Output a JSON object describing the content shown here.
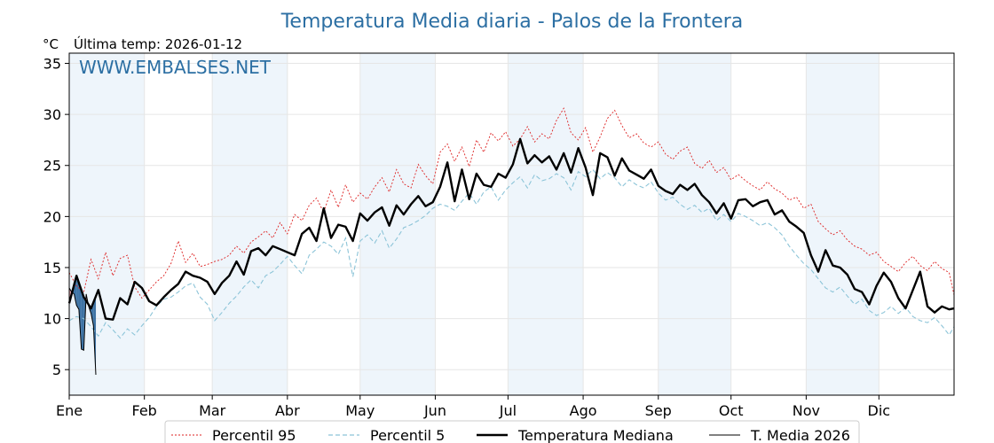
{
  "chart_data": {
    "type": "line",
    "title": "Temperatura Media diaria - Palos de la Frontera",
    "unit_label": "°C",
    "last_temp": "Última temp: 2026-01-12",
    "watermark": "WWW.EMBALSES.NET",
    "xlabel": "",
    "ylabel": "",
    "x_ticks": [
      "Ene",
      "Feb",
      "Mar",
      "Abr",
      "May",
      "Jun",
      "Jul",
      "Ago",
      "Sep",
      "Oct",
      "Nov",
      "Dic"
    ],
    "month_start_days": [
      1,
      32,
      60,
      91,
      121,
      152,
      182,
      213,
      244,
      274,
      305,
      335
    ],
    "xlim": [
      1,
      366
    ],
    "ylim": [
      2.5,
      36
    ],
    "y_ticks": [
      5,
      10,
      15,
      20,
      25,
      30,
      35
    ],
    "grid": true,
    "legend_position": "bottom",
    "colors": {
      "title": "#2c6fa3",
      "p95": "#dd2222",
      "p5": "#8cc4d8",
      "median": "#000000",
      "current": "#000000",
      "band": "#eef5fb",
      "fill_above": "#f0a0a8",
      "fill_below": "#1f5c94"
    },
    "series": [
      {
        "name": "Percentil 95",
        "style": "dotted-red",
        "x": [
          1,
          4,
          7,
          10,
          13,
          16,
          19,
          22,
          25,
          28,
          31,
          34,
          37,
          40,
          43,
          46,
          49,
          52,
          55,
          58,
          61,
          64,
          67,
          70,
          73,
          76,
          79,
          82,
          85,
          88,
          91,
          94,
          97,
          100,
          103,
          106,
          109,
          112,
          115,
          118,
          121,
          124,
          127,
          130,
          133,
          136,
          139,
          142,
          145,
          148,
          151,
          154,
          157,
          160,
          163,
          166,
          169,
          172,
          175,
          178,
          181,
          184,
          187,
          190,
          193,
          196,
          199,
          202,
          205,
          208,
          211,
          214,
          217,
          220,
          223,
          226,
          229,
          232,
          235,
          238,
          241,
          244,
          247,
          250,
          253,
          256,
          259,
          262,
          265,
          268,
          271,
          274,
          277,
          280,
          283,
          286,
          289,
          292,
          295,
          298,
          301,
          304,
          307,
          310,
          313,
          316,
          319,
          322,
          325,
          328,
          331,
          334,
          337,
          340,
          343,
          346,
          349,
          352,
          355,
          358,
          361,
          364,
          366
        ],
        "y": [
          14.5,
          13.2,
          12.6,
          15.8,
          13.9,
          16.5,
          14.2,
          15.9,
          16.2,
          13.1,
          12.0,
          12.8,
          13.6,
          14.2,
          15.4,
          17.6,
          15.5,
          16.4,
          15.1,
          15.3,
          15.6,
          15.8,
          16.2,
          17.1,
          16.4,
          17.5,
          18.0,
          18.6,
          17.9,
          19.4,
          18.3,
          20.2,
          19.6,
          21.1,
          21.8,
          20.4,
          22.6,
          20.9,
          23.1,
          21.4,
          22.3,
          21.7,
          22.9,
          23.8,
          22.4,
          24.6,
          23.2,
          22.8,
          25.1,
          24.0,
          23.2,
          26.3,
          27.1,
          25.4,
          26.8,
          24.9,
          27.5,
          26.3,
          28.2,
          27.4,
          28.3,
          26.9,
          27.6,
          28.8,
          27.3,
          28.1,
          27.6,
          29.4,
          30.6,
          28.2,
          27.5,
          28.7,
          26.3,
          27.8,
          29.6,
          30.4,
          28.9,
          27.7,
          28.1,
          27.2,
          26.8,
          27.3,
          26.1,
          25.6,
          26.4,
          26.8,
          25.2,
          24.7,
          25.5,
          24.3,
          24.8,
          23.6,
          24.1,
          23.5,
          23.0,
          22.6,
          23.4,
          22.7,
          22.3,
          21.6,
          21.9,
          20.8,
          21.2,
          19.5,
          18.8,
          18.2,
          18.6,
          17.7,
          17.1,
          16.8,
          16.2,
          16.5,
          15.6,
          15.1,
          14.6,
          15.5,
          16.1,
          15.2,
          14.7,
          15.6,
          14.9,
          14.5,
          12.3
        ]
      },
      {
        "name": "Percentil 5",
        "style": "dashed-blue",
        "x": [
          1,
          4,
          7,
          10,
          13,
          16,
          19,
          22,
          25,
          28,
          31,
          34,
          37,
          40,
          43,
          46,
          49,
          52,
          55,
          58,
          61,
          64,
          67,
          70,
          73,
          76,
          79,
          82,
          85,
          88,
          91,
          94,
          97,
          100,
          103,
          106,
          109,
          112,
          115,
          118,
          121,
          124,
          127,
          130,
          133,
          136,
          139,
          142,
          145,
          148,
          151,
          154,
          157,
          160,
          163,
          166,
          169,
          172,
          175,
          178,
          181,
          184,
          187,
          190,
          193,
          196,
          199,
          202,
          205,
          208,
          211,
          214,
          217,
          220,
          223,
          226,
          229,
          232,
          235,
          238,
          241,
          244,
          247,
          250,
          253,
          256,
          259,
          262,
          265,
          268,
          271,
          274,
          277,
          280,
          283,
          286,
          289,
          292,
          295,
          298,
          301,
          304,
          307,
          310,
          313,
          316,
          319,
          322,
          325,
          328,
          331,
          334,
          337,
          340,
          343,
          346,
          349,
          352,
          355,
          358,
          361,
          364,
          366
        ],
        "y": [
          9.8,
          10.2,
          10.0,
          9.2,
          8.3,
          9.6,
          8.9,
          8.1,
          9.0,
          8.4,
          9.3,
          10.1,
          11.2,
          11.9,
          12.1,
          12.6,
          13.2,
          13.5,
          12.1,
          11.4,
          9.8,
          10.6,
          11.5,
          12.2,
          13.1,
          13.8,
          13.0,
          14.2,
          14.6,
          15.3,
          16.1,
          15.2,
          14.4,
          16.2,
          16.8,
          17.5,
          17.1,
          16.3,
          17.9,
          14.1,
          17.6,
          18.2,
          17.4,
          18.6,
          16.9,
          17.8,
          18.9,
          19.2,
          19.6,
          20.1,
          20.8,
          21.2,
          21.0,
          20.6,
          21.5,
          22.3,
          21.2,
          22.4,
          22.9,
          21.6,
          22.6,
          23.3,
          23.9,
          22.8,
          24.1,
          23.5,
          23.7,
          24.2,
          23.8,
          22.6,
          24.4,
          23.9,
          24.6,
          23.7,
          24.3,
          23.8,
          22.9,
          23.6,
          23.1,
          22.8,
          23.4,
          22.3,
          21.6,
          21.9,
          21.2,
          20.7,
          21.1,
          20.4,
          20.8,
          19.6,
          20.2,
          19.5,
          20.3,
          20.0,
          19.6,
          19.1,
          19.4,
          18.9,
          18.2,
          17.1,
          16.2,
          15.4,
          14.8,
          13.9,
          13.0,
          12.6,
          13.1,
          12.2,
          11.4,
          11.9,
          10.8,
          10.3,
          10.6,
          11.2,
          10.5,
          11.1,
          10.2,
          9.8,
          9.6,
          10.1,
          9.3,
          8.4,
          9.2
        ]
      },
      {
        "name": "Temperatura Mediana",
        "style": "solid-thick-black",
        "x": [
          1,
          4,
          7,
          10,
          13,
          16,
          19,
          22,
          25,
          28,
          31,
          34,
          37,
          40,
          43,
          46,
          49,
          52,
          55,
          58,
          61,
          64,
          67,
          70,
          73,
          76,
          79,
          82,
          85,
          88,
          91,
          94,
          97,
          100,
          103,
          106,
          109,
          112,
          115,
          118,
          121,
          124,
          127,
          130,
          133,
          136,
          139,
          142,
          145,
          148,
          151,
          154,
          157,
          160,
          163,
          166,
          169,
          172,
          175,
          178,
          181,
          184,
          187,
          190,
          193,
          196,
          199,
          202,
          205,
          208,
          211,
          214,
          217,
          220,
          223,
          226,
          229,
          232,
          235,
          238,
          241,
          244,
          247,
          250,
          253,
          256,
          259,
          262,
          265,
          268,
          271,
          274,
          277,
          280,
          283,
          286,
          289,
          292,
          295,
          298,
          301,
          304,
          307,
          310,
          313,
          316,
          319,
          322,
          325,
          328,
          331,
          334,
          337,
          340,
          343,
          346,
          349,
          352,
          355,
          358,
          361,
          364,
          366
        ],
        "y": [
          11.5,
          14.2,
          12.1,
          11.0,
          12.8,
          10.0,
          9.9,
          12.0,
          11.4,
          13.6,
          13.0,
          11.7,
          11.3,
          12.1,
          12.8,
          13.4,
          14.6,
          14.2,
          14.0,
          13.6,
          12.4,
          13.5,
          14.2,
          15.6,
          14.3,
          16.6,
          16.9,
          16.2,
          17.1,
          16.8,
          16.5,
          16.2,
          18.3,
          18.9,
          17.6,
          20.8,
          17.9,
          19.2,
          19.0,
          17.6,
          20.3,
          19.6,
          20.4,
          20.9,
          19.1,
          21.1,
          20.2,
          21.2,
          22.0,
          21.0,
          21.4,
          22.9,
          25.3,
          21.5,
          24.6,
          21.7,
          24.2,
          23.1,
          22.9,
          24.2,
          23.8,
          25.1,
          27.6,
          25.2,
          26.0,
          25.3,
          25.9,
          24.6,
          26.2,
          24.3,
          26.7,
          24.8,
          22.1,
          26.2,
          25.8,
          24.0,
          25.7,
          24.5,
          24.1,
          23.7,
          24.6,
          23.0,
          22.5,
          22.2,
          23.1,
          22.6,
          23.2,
          22.1,
          21.4,
          20.3,
          21.3,
          19.8,
          21.6,
          21.7,
          21.0,
          21.4,
          21.6,
          20.2,
          20.6,
          19.5,
          19.0,
          18.4,
          16.2,
          14.6,
          16.7,
          15.2,
          15.0,
          14.3,
          12.9,
          12.6,
          11.4,
          13.2,
          14.5,
          13.6,
          12.0,
          11.0,
          12.8,
          14.6,
          11.2,
          10.6,
          11.2,
          10.9,
          11.0
        ]
      },
      {
        "name": "T. Media 2026",
        "style": "solid-thin-black",
        "x": [
          1,
          2,
          3,
          4,
          5,
          6,
          7,
          8,
          9,
          10,
          11,
          12
        ],
        "y": [
          13.0,
          12.6,
          12.4,
          11.3,
          10.9,
          7.0,
          6.9,
          12.4,
          11.2,
          10.5,
          9.3,
          4.5
        ]
      }
    ]
  }
}
